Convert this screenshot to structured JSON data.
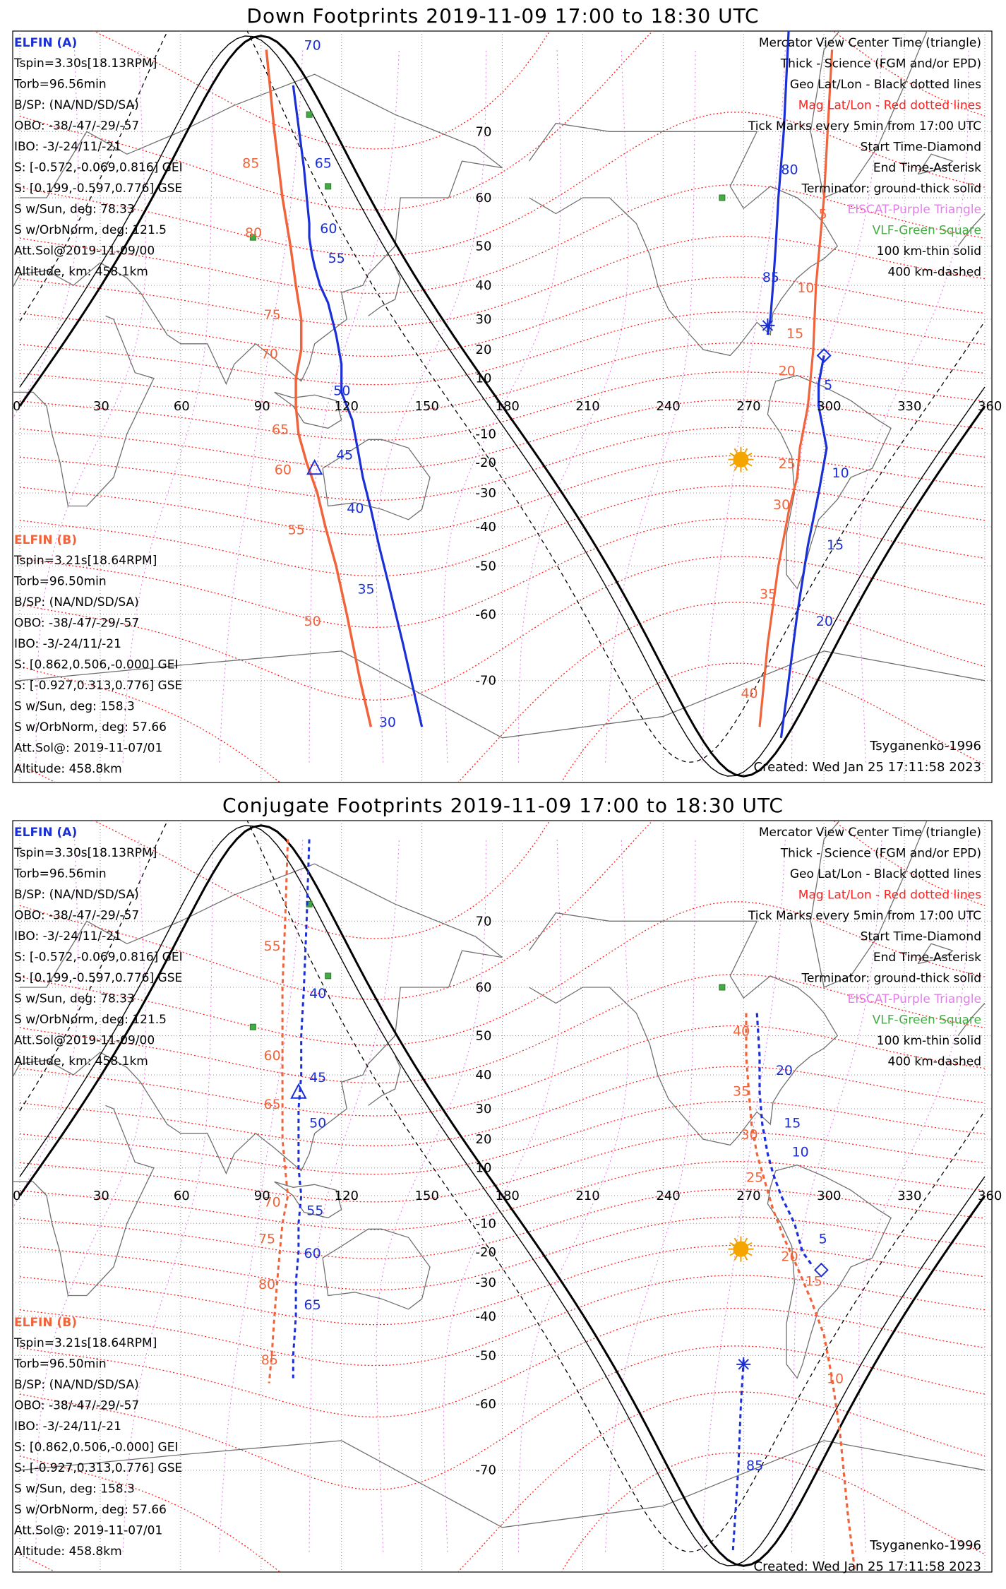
{
  "colors": {
    "a_blue": "#1a2fd6",
    "b_orange": "#f0643c",
    "mag_red": "#ff2020",
    "eiscat_violet": "#e080e8",
    "vlf_green": "#44aa44",
    "grid": "#909090",
    "coast": "#707070"
  },
  "axes": {
    "lon_ticks": [
      "0",
      "30",
      "60",
      "90",
      "120",
      "150",
      "180",
      "210",
      "240",
      "270",
      "300",
      "330",
      "360"
    ],
    "lat_ticks": [
      {
        "lat": 70,
        "label": "70"
      },
      {
        "lat": 60,
        "label": "60"
      },
      {
        "lat": 50,
        "label": "50"
      },
      {
        "lat": 40,
        "label": "40"
      },
      {
        "lat": 30,
        "label": "30"
      },
      {
        "lat": 20,
        "label": "20"
      },
      {
        "lat": 10,
        "label": "10"
      },
      {
        "lat": -10,
        "label": "-10"
      },
      {
        "lat": -20,
        "label": "-20"
      },
      {
        "lat": -30,
        "label": "-30"
      },
      {
        "lat": -40,
        "label": "-40"
      },
      {
        "lat": -50,
        "label": "-50"
      },
      {
        "lat": -60,
        "label": "-60"
      },
      {
        "lat": -70,
        "label": "-70"
      }
    ]
  },
  "legend": {
    "lines": [
      {
        "text": "Mercator View Center Time (triangle)",
        "color": "#000000"
      },
      {
        "text": "Thick - Science (FGM and/or EPD)",
        "color": "#000000"
      },
      {
        "text": "Geo Lat/Lon - Black dotted lines",
        "color": "#000000"
      },
      {
        "text": "Mag Lat/Lon - Red dotted lines",
        "color": "#ff2020"
      },
      {
        "text": "Tick Marks every 5min from 17:00 UTC",
        "color": "#000000"
      },
      {
        "text": "Start Time-Diamond",
        "color": "#000000"
      },
      {
        "text": "End Time-Asterisk",
        "color": "#000000"
      },
      {
        "text": "Terminator: ground-thick solid",
        "color": "#000000"
      },
      {
        "text": "EISCAT-Purple Triangle",
        "color": "#e080e8"
      },
      {
        "text": "VLF-Green Square",
        "color": "#44aa44"
      },
      {
        "text": "100 km-thin solid",
        "color": "#000000"
      },
      {
        "text": "400 km-dashed",
        "color": "#000000"
      }
    ]
  },
  "elfin_a": {
    "title": "ELFIN (A)",
    "lines": [
      "Tspin=3.30s[18.13RPM]",
      "Torb=96.56min",
      "B/SP: (NA/ND/SD/SA)",
      "OBO: -38/-47/-29/-57",
      "IBO: -3/-24/11/-21",
      "S: [-0.572,-0.069,0.816] GEI",
      "S: [0.199,-0.597,0.776] GSE",
      "S w/Sun, deg: 78.33",
      "S w/OrbNorm, deg: 121.5",
      "Att.Sol@2019-11-09/00",
      "Altitude, km: 458.1km"
    ]
  },
  "elfin_b": {
    "title": "ELFIN (B)",
    "lines": [
      "Tspin=3.21s[18.64RPM]",
      "Torb=96.50min",
      "B/SP: (NA/ND/SD/SA)",
      "OBO: -38/-47/-29/-57",
      "IBO: -3/-24/11/-21",
      "S: [0.862,0.506,-0.000] GEI",
      "S: [-0.927,0.313,0.776] GSE",
      "S w/Sun, deg: 158.3",
      "S w/OrbNorm, deg: 57.66",
      "Att.Sol@: 2019-11-07/01",
      "Altitude: 458.8km"
    ]
  },
  "footer": {
    "model": "Tsyganenko-1996",
    "created": "Created: Wed Jan 25 17:11:58 2023"
  },
  "vlf_sites": [
    [
      108,
      72
    ],
    [
      115,
      62
    ],
    [
      87,
      52
    ],
    [
      262,
      60
    ]
  ],
  "sun": [
    269,
    -19
  ],
  "panels": [
    {
      "title": "Down Footprints 2019-11-09 17:00 to 18:30 UTC",
      "dashed": false,
      "a_track": [
        [
          102,
          75
        ],
        [
          106,
          65
        ],
        [
          108,
          55
        ],
        [
          108,
          52
        ],
        [
          109,
          48
        ],
        [
          110,
          45
        ],
        [
          112,
          40
        ],
        [
          115,
          35
        ],
        [
          118,
          25
        ],
        [
          120,
          15
        ],
        [
          120,
          5
        ],
        [
          124,
          -5
        ],
        [
          126,
          -15
        ],
        [
          128,
          -25
        ],
        [
          131,
          -35
        ],
        [
          134,
          -45
        ],
        [
          138,
          -55
        ],
        [
          143,
          -65
        ],
        [
          150,
          -75
        ]
      ],
      "a_ticks": [
        {
          "t": "70",
          "p": [
            106,
            78
          ]
        },
        {
          "t": "65",
          "p": [
            110,
            65
          ]
        },
        {
          "t": "60",
          "p": [
            112,
            53
          ]
        },
        {
          "t": "55",
          "p": [
            115,
            46
          ]
        },
        {
          "t": "50",
          "p": [
            117,
            4
          ]
        },
        {
          "t": "45",
          "p": [
            118,
            -19
          ]
        },
        {
          "t": "40",
          "p": [
            122,
            -36
          ]
        },
        {
          "t": "35",
          "p": [
            126,
            -56
          ]
        },
        {
          "t": "30",
          "p": [
            134,
            -75
          ]
        }
      ],
      "a_tri": [
        110,
        -22
      ],
      "b_track": [
        [
          92,
          78
        ],
        [
          95,
          70
        ],
        [
          98,
          60
        ],
        [
          101,
          50
        ],
        [
          103,
          40
        ],
        [
          105,
          30
        ],
        [
          105,
          20
        ],
        [
          103,
          10
        ],
        [
          103,
          0
        ],
        [
          104,
          -10
        ],
        [
          107,
          -20
        ],
        [
          111,
          -30
        ],
        [
          114,
          -40
        ],
        [
          118,
          -50
        ],
        [
          122,
          -60
        ],
        [
          127,
          -70
        ],
        [
          131,
          -75
        ]
      ],
      "b_ticks": [
        {
          "t": "85",
          "p": [
            83,
            65
          ]
        },
        {
          "t": "80",
          "p": [
            84,
            52
          ]
        },
        {
          "t": "75",
          "p": [
            91,
            30
          ]
        },
        {
          "t": "70",
          "p": [
            90,
            17
          ]
        },
        {
          "t": "65",
          "p": [
            94,
            -10
          ]
        },
        {
          "t": "60",
          "p": [
            95,
            -24
          ]
        },
        {
          "t": "55",
          "p": [
            100,
            -42
          ]
        },
        {
          "t": "50",
          "p": [
            106,
            -62
          ]
        }
      ],
      "a2_track": [
        [
          288,
          83
        ],
        [
          287,
          80
        ],
        [
          285,
          70
        ],
        [
          283,
          60
        ],
        [
          282,
          50
        ],
        [
          281,
          40
        ],
        [
          280,
          30
        ],
        [
          279,
          25
        ]
      ],
      "a2_ticks": [
        {
          "t": "80",
          "p": [
            284,
            64
          ]
        },
        {
          "t": "85",
          "p": [
            277,
            41
          ]
        }
      ],
      "a2_star": [
        279,
        28
      ],
      "a2_diamond": [
        300,
        18
      ],
      "b2_track": [
        [
          303,
          78
        ],
        [
          300,
          60
        ],
        [
          297,
          40
        ],
        [
          296,
          20
        ],
        [
          295,
          10
        ],
        [
          294,
          0
        ],
        [
          291,
          -15
        ],
        [
          290,
          -25
        ],
        [
          287,
          -35
        ],
        [
          283,
          -50
        ],
        [
          279,
          -65
        ],
        [
          276,
          -75
        ]
      ],
      "b2_ticks": [
        {
          "t": "5",
          "p": [
            298,
            56
          ]
        },
        {
          "t": "10",
          "p": [
            290,
            38
          ]
        },
        {
          "t": "15",
          "p": [
            286,
            24
          ]
        },
        {
          "t": "20",
          "p": [
            283,
            11
          ]
        },
        {
          "t": "25",
          "p": [
            283,
            -22
          ]
        },
        {
          "t": "30",
          "p": [
            281,
            -35
          ]
        },
        {
          "t": "35",
          "p": [
            276,
            -57
          ]
        },
        {
          "t": "40",
          "p": [
            269,
            -72
          ]
        }
      ],
      "b2_diamond": [
        303,
        82
      ],
      "b3_track": [
        [
          300,
          18
        ],
        [
          298,
          8
        ],
        [
          298,
          0
        ],
        [
          300,
          -10
        ],
        [
          301,
          -15
        ],
        [
          298,
          -30
        ],
        [
          294,
          -45
        ],
        [
          290,
          -60
        ],
        [
          286,
          -72
        ],
        [
          284,
          -76
        ]
      ],
      "b3_ticks": [
        {
          "t": "5",
          "p": [
            300,
            6
          ]
        },
        {
          "t": "10",
          "p": [
            303,
            -25
          ]
        },
        {
          "t": "15",
          "p": [
            301,
            -46
          ]
        },
        {
          "t": "20",
          "p": [
            297,
            -62
          ]
        }
      ],
      "b3_diamond": [
        300,
        18
      ]
    },
    {
      "title": "Conjugate Footprints 2019-11-09 17:00 to 18:30 UTC",
      "dashed": true,
      "a_track": [
        [
          108,
          78
        ],
        [
          107,
          70
        ],
        [
          106,
          60
        ],
        [
          105,
          50
        ],
        [
          105,
          40
        ],
        [
          104,
          30
        ],
        [
          104,
          20
        ],
        [
          104,
          10
        ],
        [
          105,
          0
        ],
        [
          104,
          -10
        ],
        [
          104,
          -20
        ],
        [
          103,
          -30
        ],
        [
          103,
          -40
        ],
        [
          102,
          -50
        ],
        [
          102,
          -55
        ]
      ],
      "a_ticks": [
        {
          "t": "40",
          "p": [
            108,
            58
          ]
        },
        {
          "t": "45",
          "p": [
            108,
            38
          ]
        },
        {
          "t": "50",
          "p": [
            108,
            24
          ]
        },
        {
          "t": "55",
          "p": [
            107,
            -7
          ]
        },
        {
          "t": "60",
          "p": [
            106,
            -22
          ]
        },
        {
          "t": "65",
          "p": [
            106,
            -38
          ]
        }
      ],
      "a_tri": [
        104,
        35
      ],
      "b_track": [
        [
          100,
          78
        ],
        [
          99,
          70
        ],
        [
          98,
          60
        ],
        [
          98,
          50
        ],
        [
          98,
          40
        ],
        [
          98,
          30
        ],
        [
          98,
          20
        ],
        [
          99,
          10
        ],
        [
          100,
          0
        ],
        [
          98,
          -10
        ],
        [
          97,
          -20
        ],
        [
          96,
          -30
        ],
        [
          95,
          -40
        ],
        [
          94,
          -50
        ],
        [
          93,
          -56
        ]
      ],
      "b_ticks": [
        {
          "t": "55",
          "p": [
            91,
            66
          ]
        },
        {
          "t": "60",
          "p": [
            91,
            44
          ]
        },
        {
          "t": "65",
          "p": [
            91,
            30
          ]
        },
        {
          "t": "70",
          "p": [
            91,
            -4
          ]
        },
        {
          "t": "75",
          "p": [
            89,
            -17
          ]
        },
        {
          "t": "80",
          "p": [
            89,
            -32
          ]
        },
        {
          "t": "85",
          "p": [
            90,
            -52
          ]
        }
      ],
      "a2_track": [
        [
          275,
          55
        ],
        [
          276,
          45
        ],
        [
          276,
          35
        ],
        [
          277,
          25
        ],
        [
          279,
          15
        ],
        [
          281,
          8
        ],
        [
          284,
          0
        ],
        [
          289,
          -10
        ],
        [
          292,
          -20
        ],
        [
          296,
          -25
        ]
      ],
      "a2_ticks": [
        {
          "t": "20",
          "p": [
            282,
            40
          ]
        },
        {
          "t": "15",
          "p": [
            285,
            24
          ]
        },
        {
          "t": "10",
          "p": [
            288,
            14
          ]
        },
        {
          "t": "5",
          "p": [
            298,
            -17
          ]
        }
      ],
      "a2_diamond": [
        299,
        -26
      ],
      "a3_track": [
        [
          270,
          -51
        ],
        [
          269,
          -60
        ],
        [
          268,
          -70
        ],
        [
          266,
          -78
        ]
      ],
      "a3_ticks": [
        {
          "t": "85",
          "p": [
            271,
            -70
          ]
        }
      ],
      "a3_star": [
        270,
        -52
      ],
      "b2_track": [
        [
          271,
          55
        ],
        [
          271,
          45
        ],
        [
          272,
          35
        ],
        [
          273,
          25
        ],
        [
          275,
          15
        ],
        [
          278,
          5
        ],
        [
          281,
          -5
        ],
        [
          285,
          -15
        ],
        [
          290,
          -25
        ],
        [
          295,
          -35
        ],
        [
          300,
          -45
        ],
        [
          303,
          -55
        ],
        [
          306,
          -65
        ],
        [
          309,
          -75
        ],
        [
          312,
          -80
        ]
      ],
      "b2_ticks": [
        {
          "t": "40",
          "p": [
            266,
            50
          ]
        },
        {
          "t": "35",
          "p": [
            266,
            34
          ]
        },
        {
          "t": "30",
          "p": [
            269,
            20
          ]
        },
        {
          "t": "25",
          "p": [
            271,
            5
          ]
        },
        {
          "t": "20",
          "p": [
            284,
            -23
          ]
        },
        {
          "t": "15",
          "p": [
            293,
            -31
          ]
        },
        {
          "t": "10",
          "p": [
            301,
            -56
          ]
        }
      ]
    }
  ]
}
